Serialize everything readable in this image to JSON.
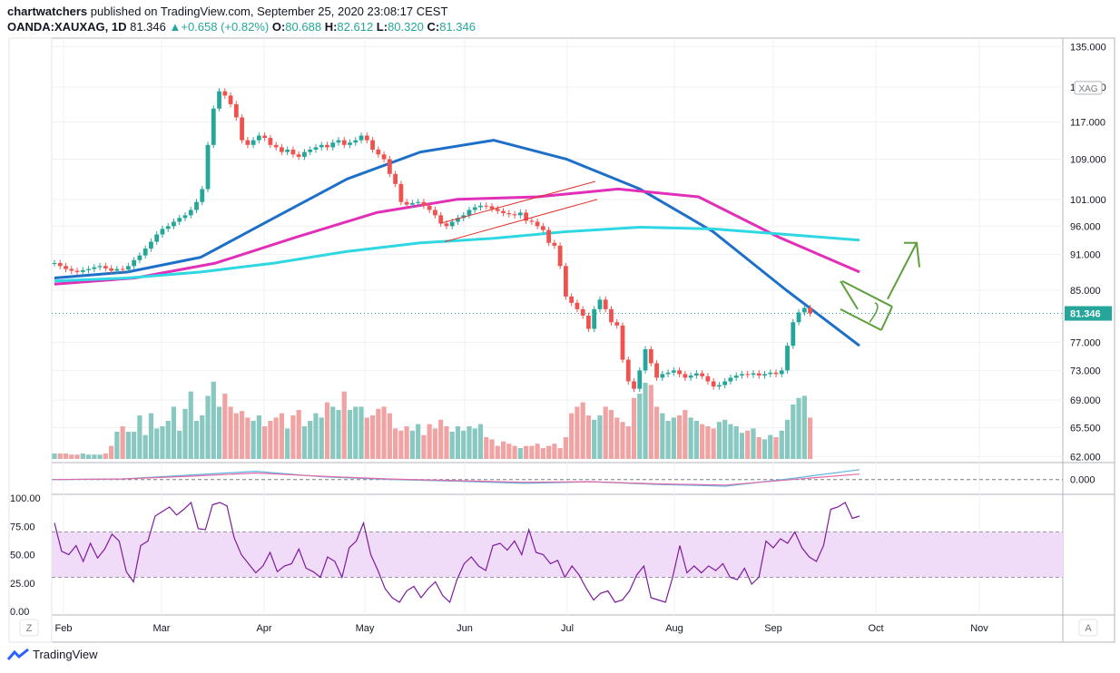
{
  "header": {
    "publisher_name": "chartwatchers",
    "published_text": "published on TradingView.com, September 25, 2020 23:08:17 CEST",
    "symbol": "OANDA:XAUXAG, 1D",
    "last": "81.346",
    "change_arrow": "▲",
    "change": "+0.658 (+0.82%)",
    "open_label": "O:",
    "open": "80.688",
    "high_label": "H:",
    "high": "82.612",
    "low_label": "L:",
    "low": "80.320",
    "close_label": "C:",
    "close": "81.346"
  },
  "branding": {
    "name": "TradingView"
  },
  "bottom_buttons": {
    "left": "Z",
    "right": "A"
  },
  "colors": {
    "up": "#26a69a",
    "down": "#ef5350",
    "vol_up": "#88c8c0",
    "vol_down": "#f0a3a3",
    "ma_blue": "#1e6fc8",
    "ma_magenta": "#e22fb8",
    "ma_cyan": "#2fd7e3",
    "rsi_line": "#7e1a9c",
    "rsi_band": "#f0dcf8",
    "macd": "#5fb4e0",
    "signal": "#e06aa8",
    "drawing_red": "#e0312b",
    "drawing_green": "#5e9e3c"
  },
  "chart_data": [
    {
      "type": "candlestick",
      "instrument": "OANDA:XAUXAG",
      "timeframe": "1D",
      "currency_label": "XAG",
      "x_month_labels": [
        "Feb",
        "Mar",
        "Apr",
        "May",
        "Jun",
        "Jul",
        "Aug",
        "Sep",
        "Oct",
        "Nov"
      ],
      "y_tick_labels": [
        "135.000",
        "125.000",
        "117.000",
        "109.000",
        "101.000",
        "96.000",
        "91.000",
        "85.000",
        "77.000",
        "73.000",
        "69.000",
        "65.500",
        "62.000"
      ],
      "y_scale": "log",
      "last_price_label": "81.346",
      "close_series_approx": [
        89.5,
        89,
        88.5,
        88.2,
        88,
        88.3,
        88.5,
        88.8,
        89,
        88.6,
        88.2,
        88.5,
        88.4,
        89,
        90,
        90.8,
        92,
        93.2,
        94.5,
        95.5,
        96,
        96.8,
        97.5,
        98,
        99,
        100.5,
        103,
        112,
        120,
        124,
        123,
        121,
        118,
        113,
        112,
        113,
        114,
        113.5,
        112,
        111.5,
        110.5,
        111,
        110,
        109.5,
        110.5,
        111,
        111.5,
        112,
        111.5,
        112.5,
        113,
        112,
        112.5,
        113,
        114,
        113,
        111,
        110,
        109,
        106,
        104,
        100.5,
        100,
        100.3,
        100.5,
        99.8,
        99,
        98,
        96.5,
        96,
        96.8,
        97.5,
        98,
        99,
        99.5,
        99.8,
        99.7,
        99.2,
        98.8,
        98.4,
        98.2,
        98,
        98.5,
        97,
        96.8,
        96,
        95.3,
        93,
        92.5,
        89,
        84,
        83,
        82,
        81,
        79,
        82,
        83.5,
        82,
        80,
        79.5,
        74.5,
        71.5,
        70.5,
        73,
        76,
        74,
        72,
        72.5,
        72.7,
        73,
        72.5,
        72,
        72.3,
        72.6,
        72.2,
        71.5,
        70.8,
        71,
        71.5,
        72,
        72.3,
        72.5,
        72.4,
        72.6,
        72.3,
        72.5,
        72.7,
        72.5,
        73,
        76.5,
        80,
        81.5,
        82.2,
        81.346
      ],
      "series": [
        {
          "name": "",
          "note": "blue moving average",
          "values_approx": [
            87,
            88,
            90.5,
            97.5,
            105,
            110.5,
            113,
            109,
            103,
            95,
            85,
            76.5
          ]
        },
        {
          "name": "",
          "note": "magenta moving average",
          "values_approx": [
            86,
            87,
            89.5,
            94,
            98.5,
            101,
            101.5,
            103,
            101.5,
            94,
            88
          ]
        },
        {
          "name": "",
          "note": "cyan moving average",
          "values_approx": [
            86.5,
            87,
            88,
            89.5,
            91.5,
            93,
            93.8,
            95,
            95.8,
            95.5,
            94.5,
            93.5
          ]
        }
      ],
      "volume_relative": [
        0.05,
        0.05,
        0.05,
        0.04,
        0.04,
        0.05,
        0.04,
        0.04,
        0.04,
        0.05,
        0.12,
        0.25,
        0.3,
        0.25,
        0.25,
        0.4,
        0.22,
        0.42,
        0.28,
        0.3,
        0.35,
        0.48,
        0.26,
        0.46,
        0.62,
        0.35,
        0.4,
        0.58,
        0.71,
        0.48,
        0.6,
        0.48,
        0.42,
        0.44,
        0.38,
        0.35,
        0.4,
        0.3,
        0.35,
        0.38,
        0.42,
        0.28,
        0.4,
        0.45,
        0.3,
        0.35,
        0.42,
        0.38,
        0.52,
        0.48,
        0.45,
        0.62,
        0.45,
        0.48,
        0.48,
        0.38,
        0.4,
        0.46,
        0.48,
        0.42,
        0.28,
        0.26,
        0.3,
        0.26,
        0.32,
        0.22,
        0.32,
        0.28,
        0.36,
        0.3,
        0.25,
        0.3,
        0.26,
        0.3,
        0.28,
        0.32,
        0.2,
        0.18,
        0.12,
        0.16,
        0.14,
        0.12,
        0.1,
        0.12,
        0.12,
        0.14,
        0.1,
        0.12,
        0.14,
        0.1,
        0.2,
        0.42,
        0.48,
        0.52,
        0.4,
        0.36,
        0.4,
        0.48,
        0.45,
        0.38,
        0.34,
        0.3,
        0.56,
        0.6,
        0.7,
        0.68,
        0.48,
        0.42,
        0.35,
        0.38,
        0.4,
        0.45,
        0.38,
        0.35,
        0.32,
        0.3,
        0.28,
        0.34,
        0.36,
        0.32,
        0.3,
        0.24,
        0.26,
        0.28,
        0.2,
        0.18,
        0.22,
        0.2,
        0.26,
        0.36,
        0.5,
        0.56,
        0.58,
        0.38
      ],
      "annotations": [
        "rising red channel (May–Jul)",
        "green descending flag with breakout arrow (Sep–Oct)"
      ]
    },
    {
      "type": "line",
      "panel": "MACD",
      "y_tick_labels": [
        "0.000"
      ],
      "series": [
        {
          "name": "",
          "values_approx": [
            0,
            0.1,
            0.8,
            1.5,
            0.5,
            0,
            -0.3,
            -0.7,
            -0.4,
            -0.9,
            -1.2,
            0.2,
            1.8
          ]
        },
        {
          "name": "",
          "values_approx": [
            0,
            0.1,
            0.6,
            1.2,
            0.6,
            0.1,
            -0.2,
            -0.5,
            -0.4,
            -0.8,
            -1.0,
            0,
            1.0
          ]
        }
      ]
    },
    {
      "type": "line",
      "panel": "RSI",
      "y_tick_labels": [
        "100.00",
        "75.00",
        "50.00",
        "25.00",
        "0.00"
      ],
      "ylim": [
        0,
        100
      ],
      "band": [
        30,
        70
      ],
      "values_approx": [
        78,
        53,
        50,
        58,
        44,
        60,
        47,
        55,
        68,
        62,
        35,
        26,
        58,
        62,
        84,
        88,
        92,
        85,
        90,
        96,
        73,
        72,
        94,
        96,
        93,
        65,
        50,
        42,
        34,
        40,
        52,
        35,
        40,
        42,
        55,
        38,
        35,
        30,
        48,
        44,
        30,
        56,
        62,
        78,
        50,
        36,
        20,
        12,
        8,
        18,
        22,
        12,
        20,
        26,
        14,
        8,
        28,
        42,
        48,
        40,
        36,
        58,
        60,
        54,
        62,
        50,
        72,
        52,
        50,
        42,
        45,
        30,
        40,
        32,
        20,
        10,
        16,
        18,
        8,
        10,
        18,
        32,
        40,
        12,
        10,
        8,
        30,
        58,
        34,
        40,
        34,
        40,
        36,
        42,
        30,
        28,
        38,
        24,
        30,
        62,
        56,
        64,
        60,
        70,
        56,
        48,
        44,
        58,
        90,
        92,
        96,
        82,
        84
      ]
    }
  ]
}
